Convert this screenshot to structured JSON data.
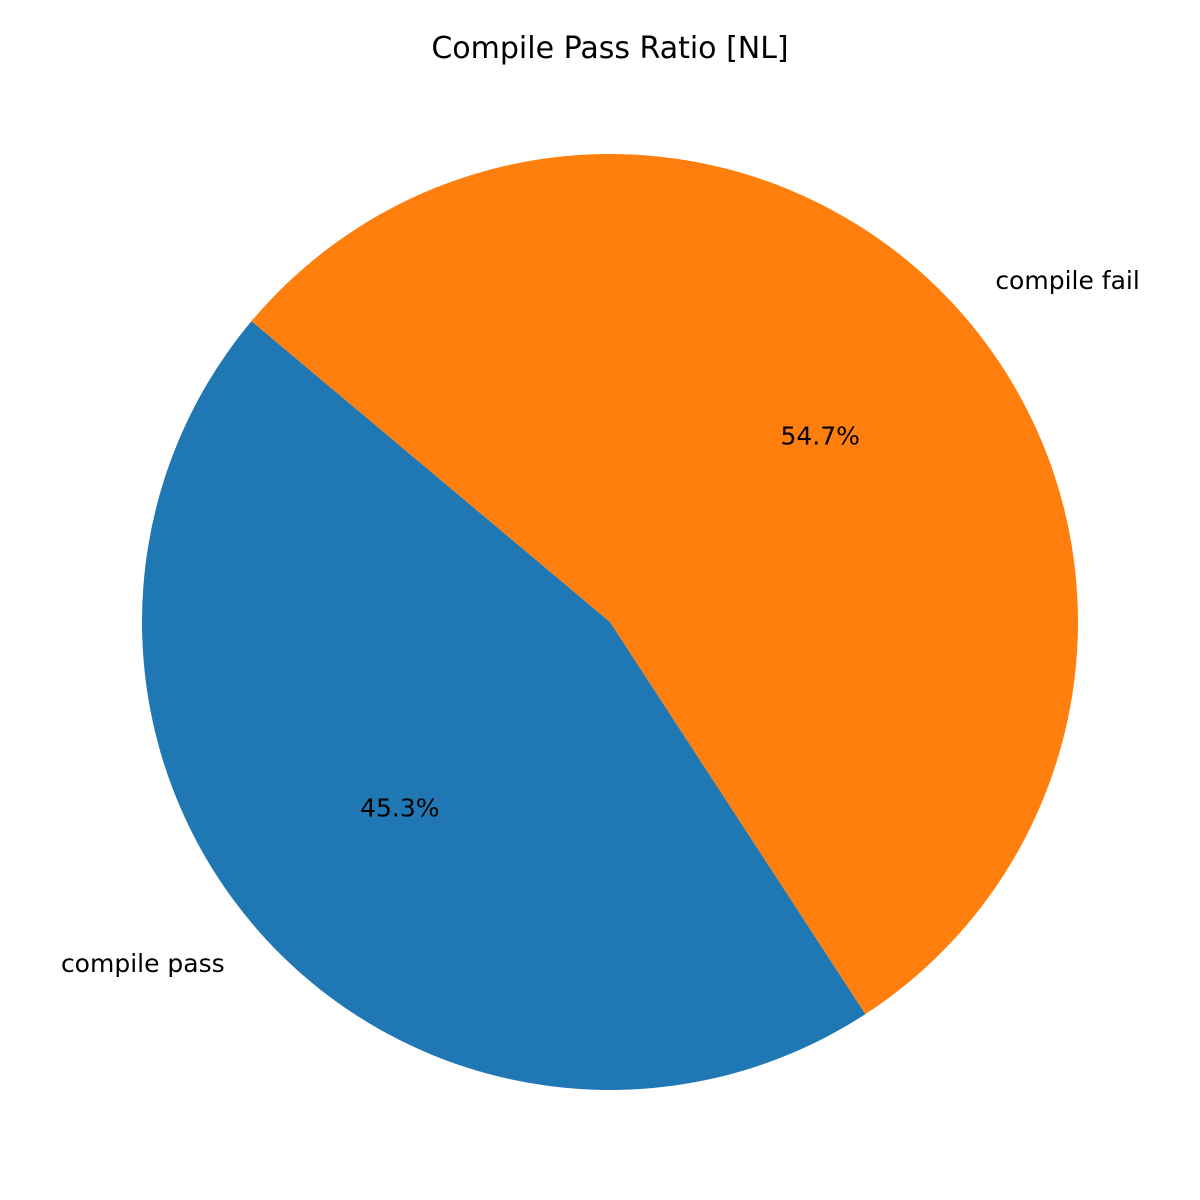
{
  "chart_data": {
    "type": "pie",
    "title": "Compile Pass Ratio [NL]",
    "start_angle_deg": 140,
    "direction": "counterclockwise",
    "slices": [
      {
        "label": "compile pass",
        "value": 45.3,
        "pct_label": "45.3%",
        "color": "#1f77b4"
      },
      {
        "label": "compile fail",
        "value": 54.7,
        "pct_label": "54.7%",
        "color": "#ff7f0e"
      }
    ]
  }
}
